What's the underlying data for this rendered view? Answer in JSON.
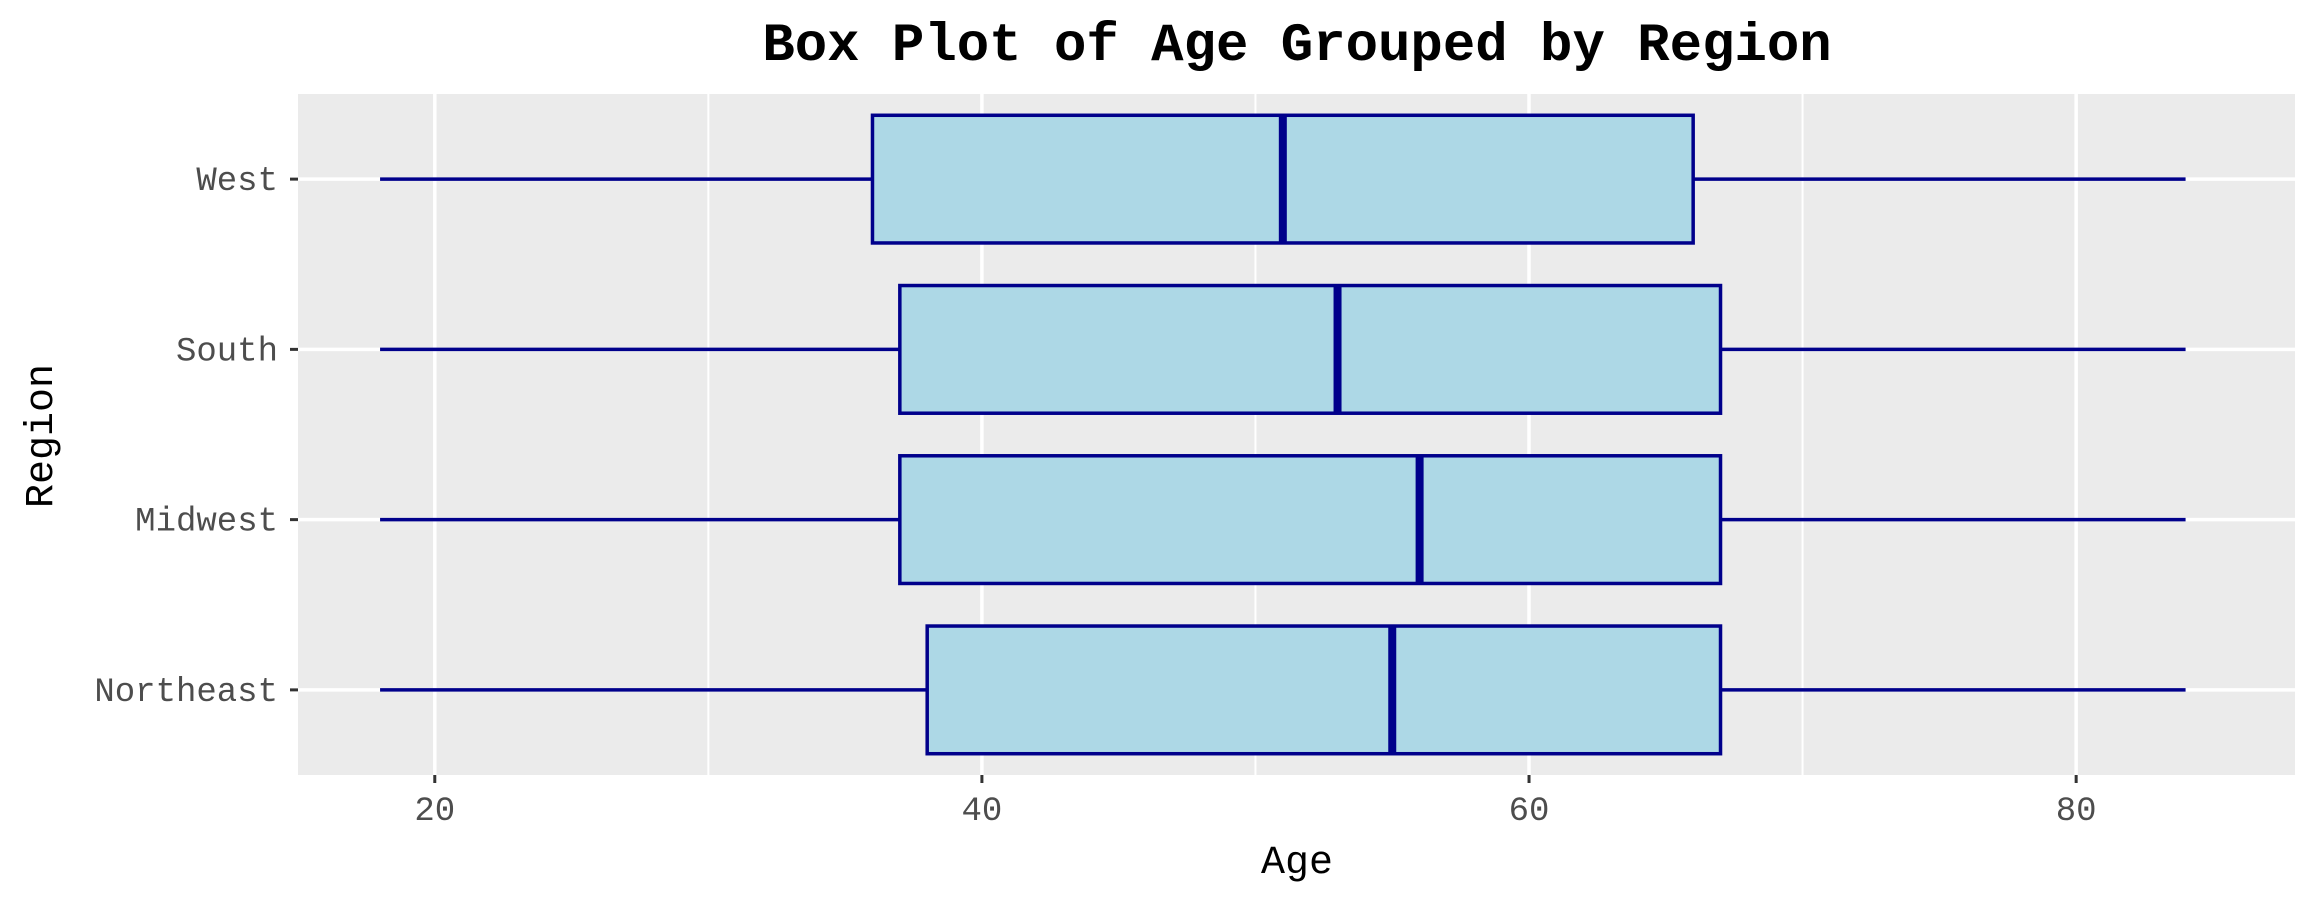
{
  "chart_data": {
    "type": "boxplot",
    "orientation": "horizontal",
    "title": "Box Plot of Age Grouped by Region",
    "xlabel": "Age",
    "ylabel": "Region",
    "xlim": [
      15,
      88
    ],
    "x_ticks": [
      20,
      40,
      60,
      80
    ],
    "x_minor_ticks": [
      30,
      50,
      70
    ],
    "grid": true,
    "categories": [
      "Northeast",
      "Midwest",
      "South",
      "West"
    ],
    "boxes": [
      {
        "category": "Northeast",
        "min": 18,
        "q1": 38,
        "median": 55,
        "q3": 67,
        "max": 84
      },
      {
        "category": "Midwest",
        "min": 18,
        "q1": 37,
        "median": 56,
        "q3": 67,
        "max": 84
      },
      {
        "category": "South",
        "min": 18,
        "q1": 37,
        "median": 53,
        "q3": 67,
        "max": 84
      },
      {
        "category": "West",
        "min": 18,
        "q1": 36,
        "median": 51,
        "q3": 66,
        "max": 84
      }
    ],
    "colors": {
      "box_fill": "#add8e6",
      "box_outline": "#00008b",
      "panel_background": "#ebebeb",
      "grid": "#ffffff"
    }
  }
}
